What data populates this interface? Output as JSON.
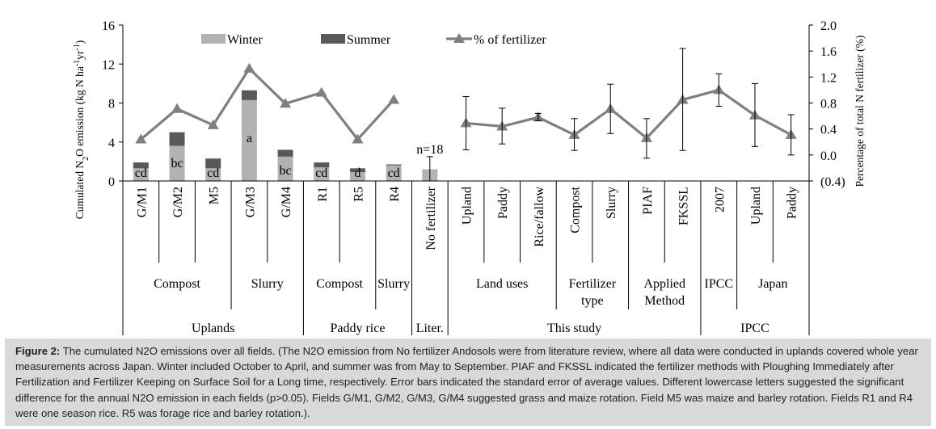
{
  "chart_data": {
    "type": "bar",
    "left_axis": {
      "label": "Cumulated N2O emission (kg N ha-1yr-1)",
      "ticks": [
        "0",
        "4",
        "8",
        "12",
        "16"
      ],
      "ylim": [
        0,
        16
      ]
    },
    "right_axis": {
      "label": "Percentage of total N fertilizer (%)",
      "ticks": [
        "(0.4)",
        "0.0",
        "0.4",
        "0.8",
        "1.2",
        "1.6",
        "2.0"
      ],
      "ylim": [
        -0.4,
        2.0
      ]
    },
    "legend": {
      "position": "top-center",
      "items": [
        {
          "name": "Winter",
          "color": "#b2b2b2",
          "kind": "bar"
        },
        {
          "name": "Summer",
          "color": "#595959",
          "kind": "bar"
        },
        {
          "name": "% of fertilizer",
          "color": "#7f7f7f",
          "kind": "line"
        }
      ]
    },
    "categories": [
      "G/M1",
      "G/M2",
      "M5",
      "G/M3",
      "G/M4",
      "R1",
      "R5",
      "R4",
      "No fertilizer",
      "Upland",
      "Paddy",
      "Rice/fallow",
      "Compost",
      "Slurry",
      "PIAF",
      "FKSSL",
      "2007",
      "Upland",
      "Paddy"
    ],
    "series": [
      {
        "name": "Winter",
        "axis": "left",
        "values": [
          1.3,
          3.6,
          1.3,
          8.3,
          2.5,
          1.4,
          0.9,
          1.6,
          1.2,
          null,
          null,
          null,
          null,
          null,
          null,
          null,
          null,
          null,
          null
        ]
      },
      {
        "name": "Summer",
        "axis": "left",
        "values": [
          0.6,
          1.4,
          1.0,
          1.0,
          0.7,
          0.5,
          0.4,
          0.1,
          0.0,
          null,
          null,
          null,
          null,
          null,
          null,
          null,
          null,
          null,
          null
        ]
      },
      {
        "name": "% of fertilizer",
        "axis": "right",
        "values": [
          0.24,
          0.71,
          0.46,
          1.33,
          0.79,
          0.96,
          0.24,
          0.85,
          null,
          null,
          null,
          null,
          null,
          null,
          null,
          null,
          null,
          null,
          null
        ]
      },
      {
        "name": "% of fertilizer",
        "axis": "right",
        "values": [
          null,
          null,
          null,
          null,
          null,
          null,
          null,
          null,
          null,
          0.49,
          0.44,
          0.58,
          0.31,
          0.71,
          0.26,
          0.85,
          1.0,
          0.61,
          0.31
        ]
      }
    ],
    "error_bars": {
      "No fertilizer": {
        "axis": "left",
        "value": 1.2,
        "low": 0.0,
        "high": 2.5
      },
      "Upland": {
        "axis": "right",
        "value": 0.49,
        "low": 0.08,
        "high": 0.9
      },
      "Paddy": {
        "axis": "right",
        "value": 0.44,
        "low": 0.17,
        "high": 0.72
      },
      "Rice/fallow": {
        "axis": "right",
        "value": 0.58,
        "low": 0.53,
        "high": 0.64
      },
      "Compost": {
        "axis": "right",
        "value": 0.31,
        "low": 0.07,
        "high": 0.56
      },
      "Slurry": {
        "axis": "right",
        "value": 0.71,
        "low": 0.33,
        "high": 1.09
      },
      "PIAF": {
        "axis": "right",
        "value": 0.26,
        "low": -0.05,
        "high": 0.56
      },
      "FKSSL": {
        "axis": "right",
        "value": 0.85,
        "low": 0.07,
        "high": 1.64
      },
      "2007": {
        "axis": "right",
        "value": 1.0,
        "low": 0.75,
        "high": 1.25
      },
      "Upland (IPCC)": {
        "axis": "right",
        "value": 0.61,
        "low": 0.13,
        "high": 1.1
      },
      "Paddy (IPCC)": {
        "axis": "right",
        "value": 0.31,
        "low": 0.0,
        "high": 0.62
      }
    },
    "bar_labels": [
      "cd",
      "bc",
      "cd",
      "a",
      "bc",
      "cd",
      "d",
      "cd"
    ],
    "annotations": [
      "n=18"
    ],
    "group_level_1": [
      {
        "label": "Compost",
        "lines": [
          "Compost"
        ]
      },
      {
        "label": "Slurry",
        "lines": [
          "Slurry"
        ]
      },
      {
        "label": "Compost",
        "lines": [
          "Compost"
        ]
      },
      {
        "label": "Slurry",
        "lines": [
          "Slurry"
        ]
      },
      {
        "label": "",
        "lines": []
      },
      {
        "label": "Land uses",
        "lines": [
          "Land uses"
        ]
      },
      {
        "label": "Fertilizer type",
        "lines": [
          "Fertilizer",
          "type"
        ]
      },
      {
        "label": "Applied Method",
        "lines": [
          "Applied",
          "Method"
        ]
      },
      {
        "label": "IPCC",
        "lines": [
          "IPCC"
        ]
      },
      {
        "label": "Japan",
        "lines": [
          "Japan"
        ]
      }
    ],
    "group_level_2": [
      "Uplands",
      "Paddy rice",
      "Liter.",
      "This study",
      "IPCC"
    ],
    "grid": false
  },
  "caption": {
    "label": "Figure 2:",
    "text": "The cumulated N2O emissions over all fields. (The N2O emission from No fertilizer Andosols were from literature review, where all data were conducted in uplands covered whole year measurements across Japan. Winter included October to April, and summer was from May to September. PIAF and FKSSL indicated the fertilizer methods with Ploughing Immediately after Fertilization and Fertilizer Keeping on Surface Soil for a Long time, respectively. Error bars indicated the standard error of average values. Different lowercase letters suggested the significant difference for the annual N2O emission in each fields (p>0.05). Fields G/M1, G/M2, G/M3, G/M4 suggested grass and maize rotation. Field M5 was maize and barley rotation. Fields R1 and R4 were one season rice. R5 was forage rice and barley rotation.)."
  }
}
